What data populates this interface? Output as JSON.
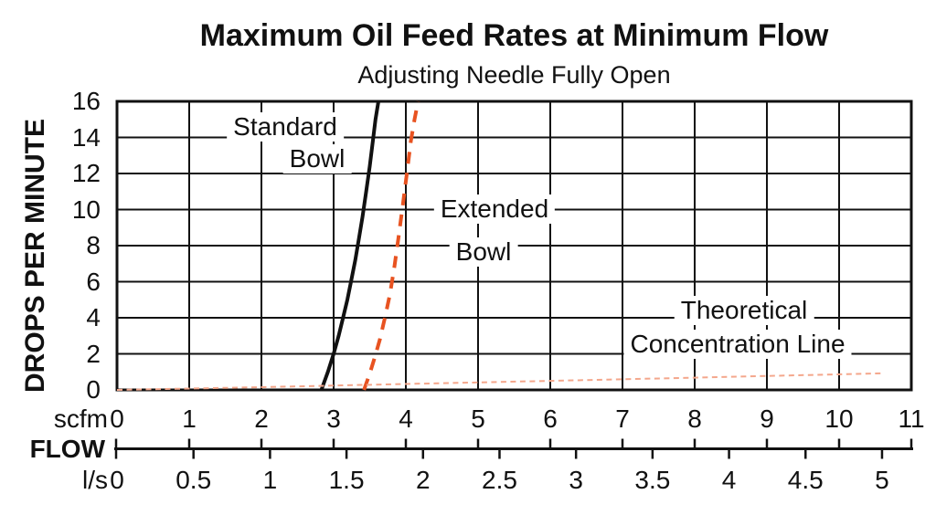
{
  "page": {
    "background": "#ffffff"
  },
  "chart_data": {
    "type": "line",
    "title": "Maximum Oil Feed Rates at Minimum Flow",
    "subtitle": "Adjusting Needle Fully Open",
    "grid": true,
    "legend_position": "inline-annotations",
    "y_axis": {
      "label": "DROPS PER MINUTE",
      "min": 0,
      "max": 16,
      "tick_step": 2,
      "ticks": [
        16,
        14,
        12,
        10,
        8,
        6,
        4,
        2,
        0
      ]
    },
    "x_axis": {
      "label": "FLOW",
      "scfm": {
        "unit": "scfm",
        "min": 0,
        "max": 11,
        "ticks": [
          0,
          1,
          2,
          3,
          4,
          5,
          6,
          7,
          8,
          9,
          10,
          11
        ]
      },
      "ls": {
        "unit": "l/s",
        "min": 0,
        "max": 5,
        "ticks": [
          0,
          0.5,
          1,
          1.5,
          2,
          2.5,
          3,
          3.5,
          4,
          4.5,
          5
        ],
        "scfm_per_unit": 2.1189
      }
    },
    "series": [
      {
        "name": "Standard Bowl",
        "style": "solid",
        "color": "#111111",
        "points": [
          [
            2.83,
            0
          ],
          [
            2.92,
            1
          ],
          [
            3.0,
            2
          ],
          [
            3.07,
            3
          ],
          [
            3.13,
            4
          ],
          [
            3.19,
            5
          ],
          [
            3.24,
            6
          ],
          [
            3.3,
            7.2
          ],
          [
            3.35,
            8.4
          ],
          [
            3.4,
            9.6
          ],
          [
            3.45,
            11
          ],
          [
            3.5,
            12.4
          ],
          [
            3.55,
            14
          ],
          [
            3.58,
            15
          ],
          [
            3.62,
            16
          ]
        ]
      },
      {
        "name": "Extended Bowl",
        "style": "dashed",
        "color": "#E85321",
        "points": [
          [
            3.42,
            0
          ],
          [
            3.5,
            0.9
          ],
          [
            3.57,
            1.8
          ],
          [
            3.64,
            2.8
          ],
          [
            3.71,
            4
          ],
          [
            3.78,
            5.3
          ],
          [
            3.84,
            6.8
          ],
          [
            3.9,
            8.5
          ],
          [
            3.96,
            10.3
          ],
          [
            4.02,
            12.2
          ],
          [
            4.07,
            13.8
          ],
          [
            4.12,
            15
          ],
          [
            4.17,
            16
          ]
        ]
      },
      {
        "name": "Theoretical Concentration Line",
        "style": "fine-dashed",
        "color": "#F4A78C",
        "points": [
          [
            0,
            0
          ],
          [
            2,
            0.15
          ],
          [
            4,
            0.33
          ],
          [
            6,
            0.5
          ],
          [
            8,
            0.68
          ],
          [
            10.6,
            0.92
          ]
        ]
      }
    ],
    "annotations": [
      {
        "key": "standard-bowl",
        "lines": [
          "Standard",
          "Bowl"
        ]
      },
      {
        "key": "extended-bowl",
        "lines": [
          "Extended",
          "Bowl"
        ]
      },
      {
        "key": "theoretical-concentration",
        "lines": [
          "Theoretical",
          "Concentration Line"
        ]
      }
    ]
  }
}
